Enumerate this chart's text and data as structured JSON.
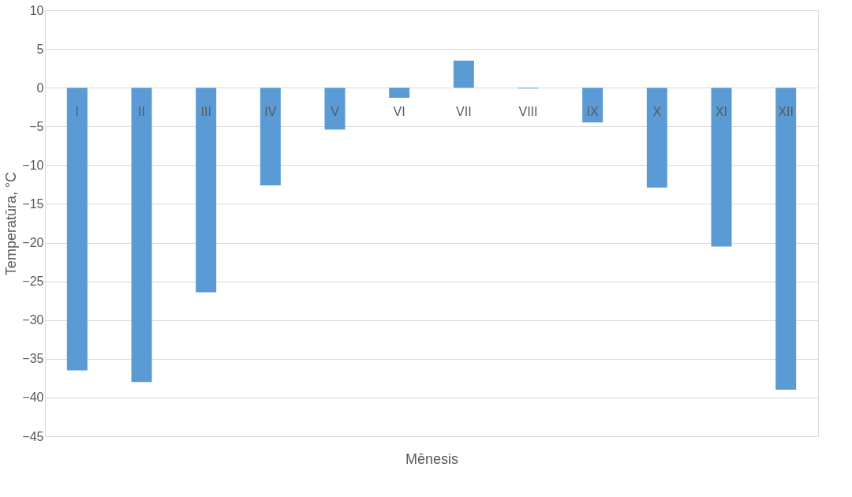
{
  "chart_data": {
    "type": "bar",
    "xlabel": "Mēnesis",
    "ylabel": "Temperatūra, °C",
    "categories": [
      "I",
      "II",
      "III",
      "IV",
      "V",
      "VI",
      "VII",
      "VIII",
      "IX",
      "X",
      "XI",
      "XII"
    ],
    "values": [
      -36.5,
      -38,
      -26.4,
      -12.6,
      -5.4,
      -1.3,
      3.5,
      -0.1,
      -4.5,
      -12.9,
      -20.5,
      -39
    ],
    "color": "#5b9bd5",
    "ylim": [
      -45,
      10
    ],
    "yticks": [
      -45,
      -40,
      -35,
      -30,
      -25,
      -20,
      -15,
      -10,
      -5,
      0,
      5,
      10
    ],
    "grid": "y"
  }
}
